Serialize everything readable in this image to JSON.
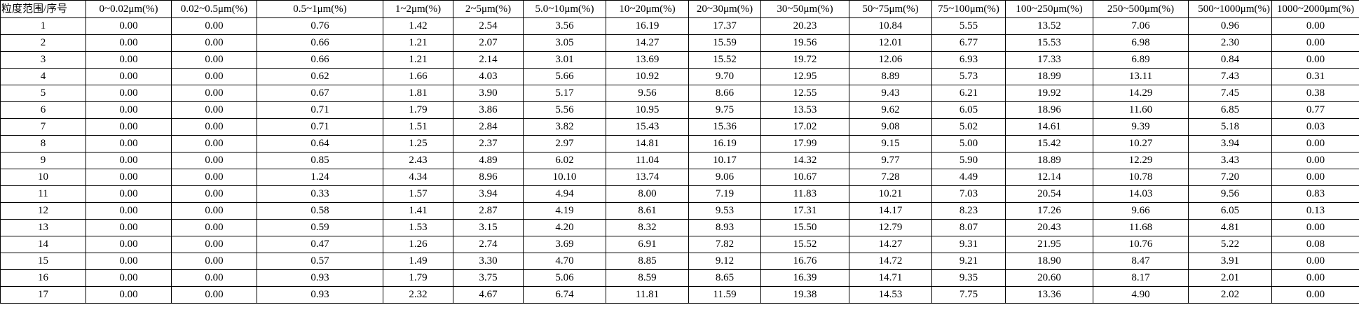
{
  "table": {
    "headers": [
      "粒度范围/序号",
      "0~0.02μm(%)",
      "0.02~0.5μm(%)",
      "0.5~1μm(%)",
      "1~2μm(%)",
      "2~5μm(%)",
      "5.0~10μm(%)",
      "10~20μm(%)",
      "20~30μm(%)",
      "30~50μm(%)",
      "50~75μm(%)",
      "75~100μm(%)",
      "100~250μm(%)",
      "250~500μm(%)",
      "500~1000μm(%)",
      "1000~2000μm(%)"
    ],
    "rows": [
      [
        "1",
        "0.00",
        "0.00",
        "0.76",
        "1.42",
        "2.54",
        "3.56",
        "16.19",
        "17.37",
        "20.23",
        "10.84",
        "5.55",
        "13.52",
        "7.06",
        "0.96",
        "0.00"
      ],
      [
        "2",
        "0.00",
        "0.00",
        "0.66",
        "1.21",
        "2.07",
        "3.05",
        "14.27",
        "15.59",
        "19.56",
        "12.01",
        "6.77",
        "15.53",
        "6.98",
        "2.30",
        "0.00"
      ],
      [
        "3",
        "0.00",
        "0.00",
        "0.66",
        "1.21",
        "2.14",
        "3.01",
        "13.69",
        "15.52",
        "19.72",
        "12.06",
        "6.93",
        "17.33",
        "6.89",
        "0.84",
        "0.00"
      ],
      [
        "4",
        "0.00",
        "0.00",
        "0.62",
        "1.66",
        "4.03",
        "5.66",
        "10.92",
        "9.70",
        "12.95",
        "8.89",
        "5.73",
        "18.99",
        "13.11",
        "7.43",
        "0.31"
      ],
      [
        "5",
        "0.00",
        "0.00",
        "0.67",
        "1.81",
        "3.90",
        "5.17",
        "9.56",
        "8.66",
        "12.55",
        "9.43",
        "6.21",
        "19.92",
        "14.29",
        "7.45",
        "0.38"
      ],
      [
        "6",
        "0.00",
        "0.00",
        "0.71",
        "1.79",
        "3.86",
        "5.56",
        "10.95",
        "9.75",
        "13.53",
        "9.62",
        "6.05",
        "18.96",
        "11.60",
        "6.85",
        "0.77"
      ],
      [
        "7",
        "0.00",
        "0.00",
        "0.71",
        "1.51",
        "2.84",
        "3.82",
        "15.43",
        "15.36",
        "17.02",
        "9.08",
        "5.02",
        "14.61",
        "9.39",
        "5.18",
        "0.03"
      ],
      [
        "8",
        "0.00",
        "0.00",
        "0.64",
        "1.25",
        "2.37",
        "2.97",
        "14.81",
        "16.19",
        "17.99",
        "9.15",
        "5.00",
        "15.42",
        "10.27",
        "3.94",
        "0.00"
      ],
      [
        "9",
        "0.00",
        "0.00",
        "0.85",
        "2.43",
        "4.89",
        "6.02",
        "11.04",
        "10.17",
        "14.32",
        "9.77",
        "5.90",
        "18.89",
        "12.29",
        "3.43",
        "0.00"
      ],
      [
        "10",
        "0.00",
        "0.00",
        "1.24",
        "4.34",
        "8.96",
        "10.10",
        "13.74",
        "9.06",
        "10.67",
        "7.28",
        "4.49",
        "12.14",
        "10.78",
        "7.20",
        "0.00"
      ],
      [
        "11",
        "0.00",
        "0.00",
        "0.33",
        "1.57",
        "3.94",
        "4.94",
        "8.00",
        "7.19",
        "11.83",
        "10.21",
        "7.03",
        "20.54",
        "14.03",
        "9.56",
        "0.83"
      ],
      [
        "12",
        "0.00",
        "0.00",
        "0.58",
        "1.41",
        "2.87",
        "4.19",
        "8.61",
        "9.53",
        "17.31",
        "14.17",
        "8.23",
        "17.26",
        "9.66",
        "6.05",
        "0.13"
      ],
      [
        "13",
        "0.00",
        "0.00",
        "0.59",
        "1.53",
        "3.15",
        "4.20",
        "8.32",
        "8.93",
        "15.50",
        "12.79",
        "8.07",
        "20.43",
        "11.68",
        "4.81",
        "0.00"
      ],
      [
        "14",
        "0.00",
        "0.00",
        "0.47",
        "1.26",
        "2.74",
        "3.69",
        "6.91",
        "7.82",
        "15.52",
        "14.27",
        "9.31",
        "21.95",
        "10.76",
        "5.22",
        "0.08"
      ],
      [
        "15",
        "0.00",
        "0.00",
        "0.57",
        "1.49",
        "3.30",
        "4.70",
        "8.85",
        "9.12",
        "16.76",
        "14.72",
        "9.21",
        "18.90",
        "8.47",
        "3.91",
        "0.00"
      ],
      [
        "16",
        "0.00",
        "0.00",
        "0.93",
        "1.79",
        "3.75",
        "5.06",
        "8.59",
        "8.65",
        "16.39",
        "14.71",
        "9.35",
        "20.60",
        "8.17",
        "2.01",
        "0.00"
      ],
      [
        "17",
        "0.00",
        "0.00",
        "0.93",
        "2.32",
        "4.67",
        "6.74",
        "11.81",
        "11.59",
        "19.38",
        "14.53",
        "7.75",
        "13.36",
        "4.90",
        "2.02",
        "0.00"
      ]
    ]
  }
}
